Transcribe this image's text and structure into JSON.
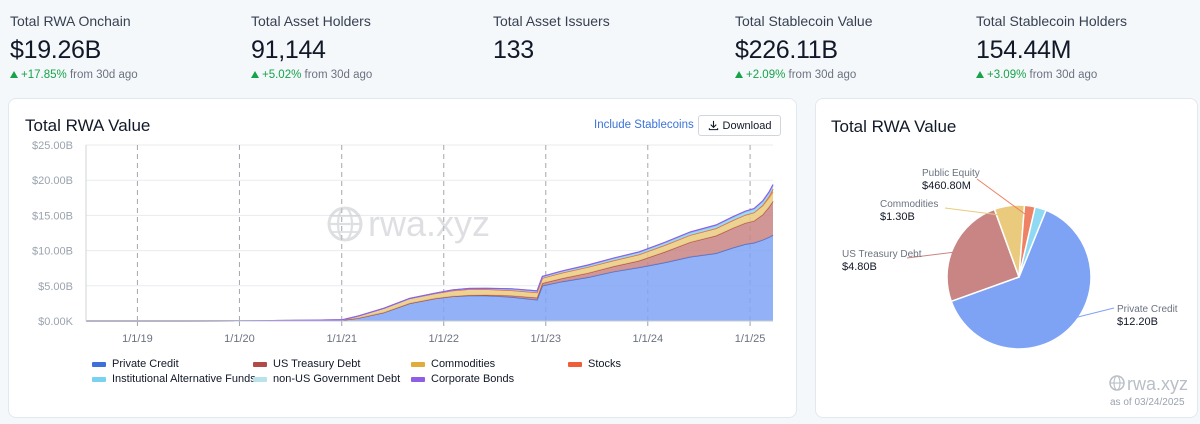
{
  "stats": [
    {
      "label": "Total RWA Onchain",
      "value": "$19.26B",
      "change": "+17.85%",
      "suffix": "from 30d ago"
    },
    {
      "label": "Total Asset Holders",
      "value": "91,144",
      "change": "+5.02%",
      "suffix": "from 30d ago"
    },
    {
      "label": "Total Asset Issuers",
      "value": "133"
    },
    {
      "label": "Total Stablecoin Value",
      "value": "$226.11B",
      "change": "+2.09%",
      "suffix": "from 30d ago"
    },
    {
      "label": "Total Stablecoin Holders",
      "value": "154.44M",
      "change": "+3.09%",
      "suffix": "from 30d ago"
    }
  ],
  "area_card": {
    "title": "Total RWA Value",
    "include_stablecoins": "Include Stablecoins",
    "download": "Download",
    "watermark": "rwa.xyz"
  },
  "pie_card": {
    "title": "Total RWA Value",
    "watermark": "rwa.xyz",
    "as_of": "as of 03/24/2025"
  },
  "colors": {
    "private_credit": "#7fa3f4",
    "us_treasury": "#c98584",
    "commodities": "#eacb7e",
    "stocks": "#ef8164",
    "institutional_alt": "#8fd9f2",
    "non_us_gov": "#b9e2ea",
    "corporate_bonds": "#b785f0",
    "positive": "#16a34a",
    "link": "#3b73d9"
  },
  "chart_data": [
    {
      "type": "area",
      "stacked": true,
      "title": "Total RWA Value",
      "y_tick_labels": [
        "$0.00K",
        "$5.00B",
        "$10.00B",
        "$15.00B",
        "$20.00B",
        "$25.00B"
      ],
      "x_tick_labels": [
        "1/1/19",
        "1/1/20",
        "1/1/21",
        "1/1/22",
        "1/1/23",
        "1/1/24",
        "1/1/25"
      ],
      "ylim": [
        0,
        25
      ],
      "y_unit": "$B",
      "grid": true,
      "legend_position": "bottom",
      "x": [
        "2018-07-01",
        "2019-01-01",
        "2019-07-01",
        "2020-01-01",
        "2020-07-01",
        "2021-01-01",
        "2021-03-01",
        "2021-06-01",
        "2021-09-01",
        "2021-12-01",
        "2022-02-01",
        "2022-04-01",
        "2022-06-01",
        "2022-09-01",
        "2022-12-01",
        "2022-12-20",
        "2023-03-01",
        "2023-06-01",
        "2023-09-01",
        "2023-12-01",
        "2024-03-01",
        "2024-06-01",
        "2024-09-01",
        "2024-11-01",
        "2024-12-15",
        "2025-01-15",
        "2025-02-15",
        "2025-03-10",
        "2025-03-24"
      ],
      "series": [
        {
          "name": "Private Credit",
          "color": "#7fa3f4",
          "values": [
            0,
            0,
            0,
            0.02,
            0.05,
            0.1,
            0.4,
            1.2,
            2.5,
            3.2,
            3.5,
            3.6,
            3.6,
            3.4,
            3.0,
            5.0,
            5.6,
            6.2,
            7.0,
            7.6,
            8.3,
            9.1,
            9.6,
            10.4,
            10.9,
            11.1,
            11.5,
            11.9,
            12.2
          ]
        },
        {
          "name": "US Treasury Debt",
          "color": "#c98584",
          "values": [
            0,
            0,
            0,
            0,
            0,
            0,
            0,
            0,
            0,
            0,
            0,
            0.05,
            0.1,
            0.2,
            0.3,
            0.35,
            0.45,
            0.6,
            0.75,
            0.95,
            1.5,
            2.1,
            2.5,
            2.8,
            3.0,
            3.1,
            3.6,
            4.3,
            4.8
          ]
        },
        {
          "name": "Commodities",
          "color": "#eacb7e",
          "values": [
            0,
            0,
            0,
            0,
            0.02,
            0.05,
            0.3,
            0.6,
            0.7,
            0.7,
            0.8,
            0.85,
            0.8,
            0.75,
            0.75,
            0.75,
            0.8,
            0.85,
            0.85,
            0.9,
            0.95,
            1.0,
            1.05,
            1.1,
            1.15,
            1.2,
            1.25,
            1.28,
            1.3
          ]
        },
        {
          "name": "Stocks",
          "color": "#ef8164",
          "values": [
            0,
            0,
            0,
            0,
            0,
            0,
            0,
            0,
            0,
            0,
            0,
            0,
            0,
            0,
            0,
            0,
            0,
            0,
            0,
            0,
            0,
            0,
            0,
            0,
            0,
            0,
            0.1,
            0.25,
            0.46
          ]
        },
        {
          "name": "Institutional Alternative Funds",
          "color": "#8fd9f2",
          "values": [
            0,
            0,
            0,
            0,
            0,
            0,
            0,
            0,
            0,
            0.05,
            0.1,
            0.12,
            0.15,
            0.2,
            0.2,
            0.2,
            0.22,
            0.24,
            0.26,
            0.28,
            0.3,
            0.32,
            0.35,
            0.38,
            0.4,
            0.42,
            0.44,
            0.46,
            0.48
          ]
        },
        {
          "name": "non-US Government Debt",
          "color": "#b9e2ea",
          "values": [
            0,
            0,
            0,
            0,
            0,
            0,
            0,
            0,
            0,
            0,
            0,
            0,
            0,
            0.02,
            0.03,
            0.03,
            0.04,
            0.05,
            0.06,
            0.07,
            0.08,
            0.09,
            0.1,
            0.1,
            0.1,
            0.1,
            0.1,
            0.1,
            0.1
          ]
        },
        {
          "name": "Corporate Bonds",
          "color": "#b785f0",
          "values": [
            0,
            0,
            0,
            0,
            0,
            0,
            0,
            0,
            0,
            0,
            0,
            0,
            0,
            0,
            0,
            0,
            0.01,
            0.01,
            0.02,
            0.02,
            0.03,
            0.03,
            0.04,
            0.04,
            0.05,
            0.05,
            0.05,
            0.05,
            0.05
          ]
        }
      ]
    },
    {
      "type": "pie",
      "title": "Total RWA Value",
      "slices": [
        {
          "label": "Private Credit",
          "value_label": "$12.20B",
          "value": 12.2,
          "color": "#7fa3f4"
        },
        {
          "label": "US Treasury Debt",
          "value_label": "$4.80B",
          "value": 4.8,
          "color": "#c98584"
        },
        {
          "label": "Commodities",
          "value_label": "$1.30B",
          "value": 1.3,
          "color": "#eacb7e"
        },
        {
          "label": "Public Equity",
          "value_label": "$460.80M",
          "value": 0.4608,
          "color": "#ef8164"
        },
        {
          "label": "",
          "value_label": "",
          "value": 0.48,
          "color": "#8fd9f2"
        }
      ]
    }
  ]
}
